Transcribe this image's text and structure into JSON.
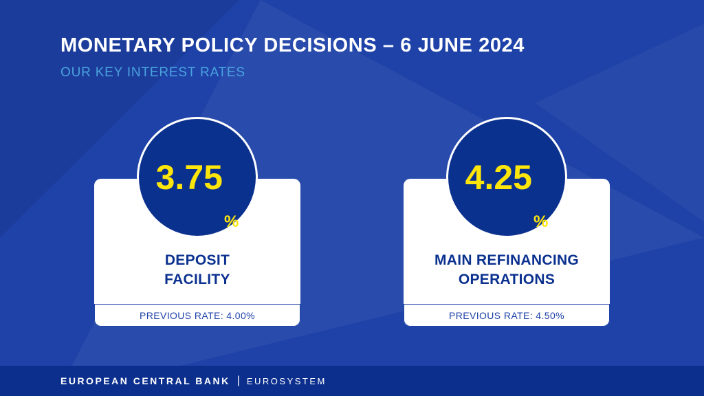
{
  "header": {
    "title": "MONETARY POLICY DECISIONS – 6 JUNE 2024",
    "subtitle": "OUR KEY INTEREST RATES"
  },
  "cards": [
    {
      "rate": "3.75",
      "unit": "%",
      "name_line1": "DEPOSIT",
      "name_line2": "FACILITY",
      "previous_rate": "PREVIOUS RATE: 4.00%"
    },
    {
      "rate": "4.25",
      "unit": "%",
      "name_line1": "MAIN REFINANCING",
      "name_line2": "OPERATIONS",
      "previous_rate": "PREVIOUS RATE: 4.50%"
    }
  ],
  "footer": {
    "organization": "EUROPEAN CENTRAL BANK",
    "separator": "|",
    "system": "EUROSYSTEM"
  },
  "colors": {
    "background": "#1e42a7",
    "footer_bar": "#0c2f8e",
    "circle_fill": "#0b318f",
    "rate_text": "#ffe60a",
    "card_text": "#0b318f",
    "subtitle_text": "#4aa3df",
    "card_background": "#ffffff"
  }
}
